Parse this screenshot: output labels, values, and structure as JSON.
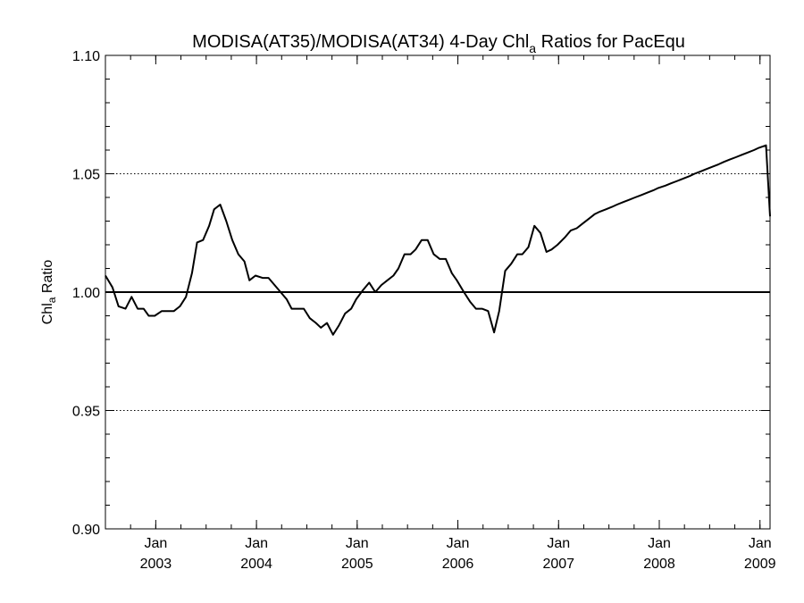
{
  "chart_data": {
    "type": "line",
    "title": {
      "prefix": "MODISA(AT35)/MODISA(AT34) 4-Day Chl",
      "subscript": "a",
      "suffix": " Ratios for PacEqu"
    },
    "ylabel": {
      "prefix": "Chl",
      "subscript": "a",
      "suffix": " Ratio"
    },
    "xlabel": "",
    "ylim": [
      0.9,
      1.1
    ],
    "xlim": [
      2002.5,
      2009.1
    ],
    "y_ticks": [
      "0.90",
      "0.95",
      "1.00",
      "1.05",
      "1.10"
    ],
    "y_tick_values": [
      0.9,
      0.95,
      1.0,
      1.05,
      1.1
    ],
    "x_ticks": [
      {
        "value": 2003,
        "month": "Jan",
        "year": "2003"
      },
      {
        "value": 2004,
        "month": "Jan",
        "year": "2004"
      },
      {
        "value": 2005,
        "month": "Jan",
        "year": "2005"
      },
      {
        "value": 2006,
        "month": "Jan",
        "year": "2006"
      },
      {
        "value": 2007,
        "month": "Jan",
        "year": "2007"
      },
      {
        "value": 2008,
        "month": "Jan",
        "year": "2008"
      },
      {
        "value": 2009,
        "month": "Jan",
        "year": "2009"
      }
    ],
    "minor_x_ticks_per_year": 4,
    "minor_y_step": 0.01,
    "dotted_grid_y": [
      0.95,
      1.05
    ],
    "reference_line_y": 1.0,
    "series": [
      {
        "x": [
          2002.5,
          2002.57,
          2002.63,
          2002.7,
          2002.76,
          2002.82,
          2002.88,
          2002.93,
          2002.99,
          2003.06,
          2003.12,
          2003.18,
          2003.24,
          2003.3,
          2003.36,
          2003.41,
          2003.47,
          2003.53,
          2003.58,
          2003.64,
          2003.7,
          2003.76,
          2003.82,
          2003.88,
          2003.93,
          2003.99,
          2004.06,
          2004.12,
          2004.18,
          2004.24,
          2004.3,
          2004.35,
          2004.41,
          2004.47,
          2004.53,
          2004.59,
          2004.64,
          2004.7,
          2004.76,
          2004.82,
          2004.88,
          2004.94,
          2004.99,
          2005.06,
          2005.12,
          2005.18,
          2005.24,
          2005.3,
          2005.36,
          2005.41,
          2005.47,
          2005.53,
          2005.58,
          2005.64,
          2005.7,
          2005.76,
          2005.82,
          2005.88,
          2005.94,
          2005.99,
          2006.06,
          2006.12,
          2006.18,
          2006.24,
          2006.3,
          2006.36,
          2006.41,
          2006.47,
          2006.53,
          2006.59,
          2006.64,
          2006.7,
          2006.76,
          2006.82,
          2006.88,
          2006.93,
          2006.99,
          2007.06,
          2007.12,
          2007.18,
          2007.24,
          2007.3,
          2007.36,
          2007.41,
          2007.47,
          2007.53,
          2007.58,
          2007.64,
          2007.7,
          2007.76,
          2007.82,
          2007.88,
          2007.94,
          2007.99,
          2008.06,
          2008.12,
          2008.18,
          2008.24,
          2008.3,
          2008.35,
          2008.41,
          2008.47,
          2008.53,
          2008.59,
          2008.64,
          2008.7,
          2008.76,
          2008.82,
          2008.88,
          2008.94,
          2008.99,
          2009.06,
          2009.1
        ],
        "y": [
          1.007,
          1.002,
          0.994,
          0.993,
          0.998,
          0.993,
          0.993,
          0.99,
          0.99,
          0.992,
          0.992,
          0.992,
          0.994,
          0.998,
          1.008,
          1.021,
          1.022,
          1.028,
          1.035,
          1.037,
          1.03,
          1.022,
          1.016,
          1.013,
          1.005,
          1.007,
          1.006,
          1.006,
          1.003,
          1.0,
          0.997,
          0.993,
          0.993,
          0.993,
          0.989,
          0.987,
          0.985,
          0.987,
          0.982,
          0.986,
          0.991,
          0.993,
          0.997,
          1.001,
          1.004,
          1.0,
          1.003,
          1.005,
          1.007,
          1.01,
          1.016,
          1.016,
          1.018,
          1.022,
          1.022,
          1.016,
          1.014,
          1.014,
          1.008,
          1.005,
          1.0,
          0.996,
          0.993,
          0.993,
          0.992,
          0.983,
          0.992,
          1.009,
          1.012,
          1.016,
          1.016,
          1.019,
          1.028,
          1.025,
          1.017,
          1.018,
          1.02,
          1.023,
          1.026,
          1.027,
          1.029,
          1.031,
          1.033,
          1.034,
          1.035,
          1.036,
          1.037,
          1.038,
          1.039,
          1.04,
          1.041,
          1.042,
          1.043,
          1.044,
          1.045,
          1.046,
          1.047,
          1.048,
          1.049,
          1.05,
          1.051,
          1.052,
          1.053,
          1.054,
          1.055,
          1.056,
          1.057,
          1.058,
          1.059,
          1.06,
          1.061,
          1.062,
          1.032
        ]
      }
    ]
  }
}
